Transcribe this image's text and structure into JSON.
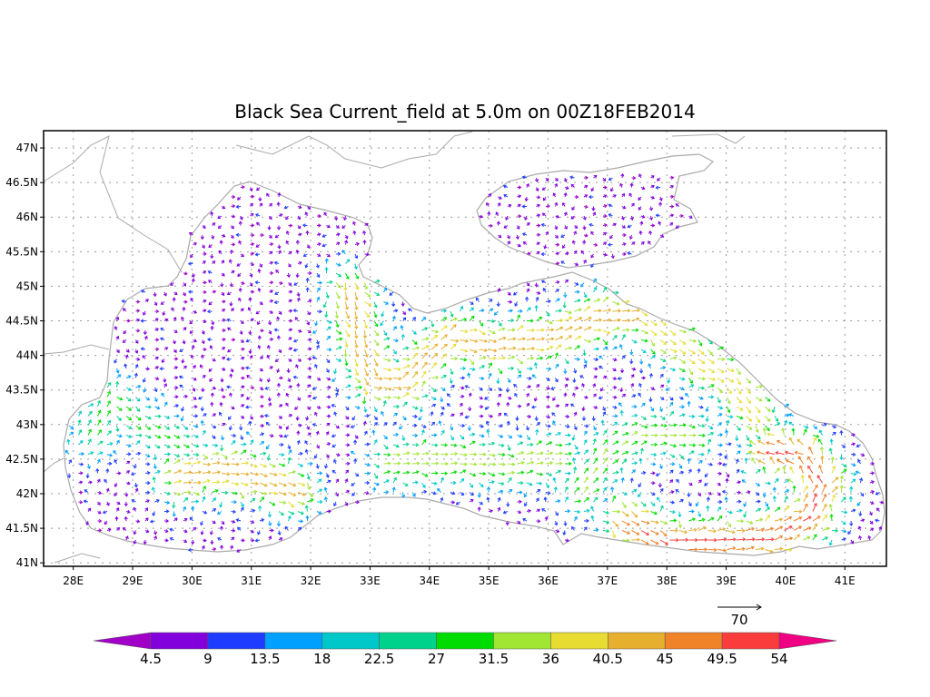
{
  "title": "Black Sea Current_field at 5.0m on 00Z18FEB2014",
  "lat_labels": [
    "47N",
    "46.5N",
    "46N",
    "45.5N",
    "45N",
    "44.5N",
    "44N",
    "43.5N",
    "43N",
    "42.5N",
    "42N",
    "41.5N",
    "41N"
  ],
  "lon_labels": [
    "28E",
    "29E",
    "30E",
    "31E",
    "32E",
    "33E",
    "34E",
    "35E",
    "36E",
    "37E",
    "38E",
    "39E",
    "40E",
    "41E"
  ],
  "map": {
    "lat_range": [
      40.95,
      47.25
    ],
    "lon_range": [
      27.5,
      41.7
    ],
    "grid": true,
    "colors": {
      "land": "#ffffff",
      "coast": "#aaaaaa",
      "grid": "#999999"
    }
  },
  "reference_vector": {
    "label": "70"
  },
  "colorbar": {
    "labels": [
      "4.5",
      "9",
      "13.5",
      "18",
      "22.5",
      "27",
      "31.5",
      "36",
      "40.5",
      "45",
      "49.5",
      "54"
    ],
    "colors": [
      "#a000c8",
      "#8200dc",
      "#1e3cff",
      "#00a0ff",
      "#00c8c8",
      "#00d28c",
      "#00dc00",
      "#a0e632",
      "#e6dc32",
      "#e6af2d",
      "#f08228",
      "#fa3c3c",
      "#f00082"
    ]
  }
}
